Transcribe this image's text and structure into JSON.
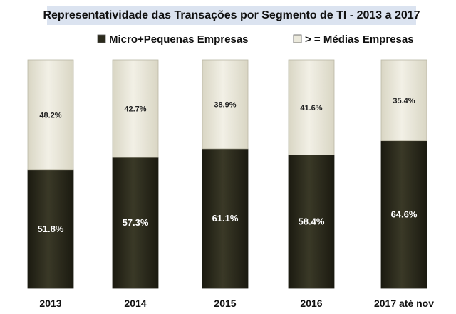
{
  "chart_data": {
    "type": "bar",
    "stacked": true,
    "percent": true,
    "title": "Representatividade das Transações por Segmento de TI - 2013 a 2017",
    "categories": [
      "2013",
      "2014",
      "2015",
      "2016",
      "2017 até nov"
    ],
    "series": [
      {
        "name": "Micro+Pequenas Empresas",
        "values": [
          51.8,
          57.3,
          61.1,
          58.4,
          64.6
        ],
        "labels": [
          "51.8%",
          "57.3%",
          "61.1%",
          "58.4%",
          "64.6%"
        ],
        "color": "#2b2a1c"
      },
      {
        "name": "> = Médias Empresas",
        "values": [
          48.2,
          42.7,
          38.9,
          41.6,
          35.4
        ],
        "labels": [
          "48.2%",
          "42.7%",
          "38.9%",
          "41.6%",
          "35.4%"
        ],
        "color": "#ebe9dc"
      }
    ],
    "ylim": [
      0,
      100
    ],
    "legend": "top",
    "grid": false
  }
}
